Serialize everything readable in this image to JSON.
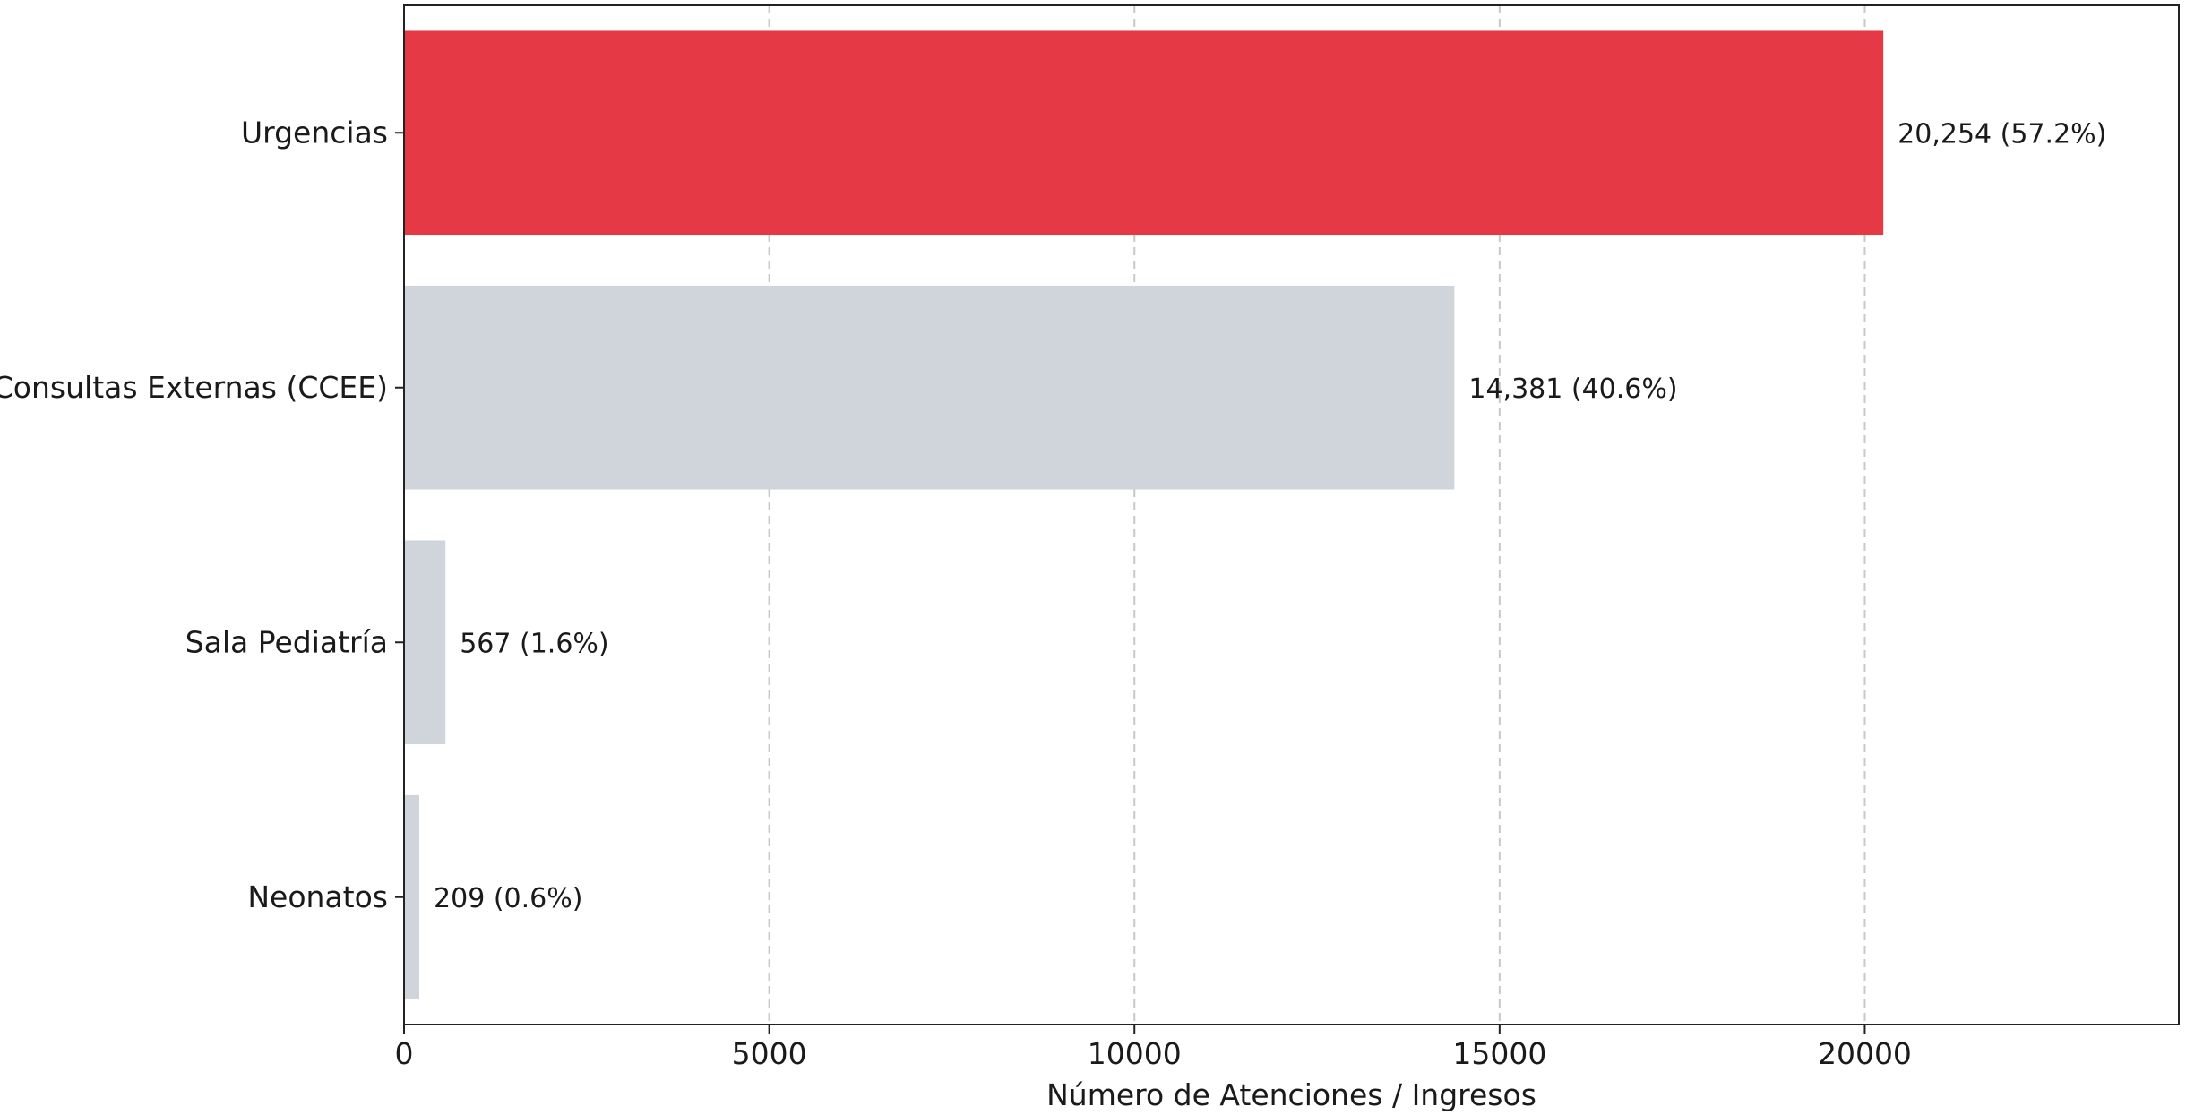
{
  "chart_data": {
    "type": "bar",
    "orientation": "horizontal",
    "title": "",
    "xlabel": "Número de Atenciones / Ingresos",
    "ylabel": "",
    "xlim": [
      0,
      24300
    ],
    "xticks": [
      0,
      5000,
      10000,
      15000,
      20000
    ],
    "xtick_labels": [
      "0",
      "5000",
      "10000",
      "15000",
      "20000"
    ],
    "grid": "vertical dashed",
    "categories": [
      "Urgencias",
      "Consultas Externas (CCEE)",
      "Sala Pediatría",
      "Neonatos"
    ],
    "values": [
      20254,
      14381,
      567,
      209
    ],
    "value_labels": [
      "20,254 (57.2%)",
      "14,381 (40.6%)",
      "567 (1.6%)",
      "209 (0.6%)"
    ],
    "colors": [
      "#e63946",
      "#d0d5db",
      "#d0d5db",
      "#d0d5db"
    ]
  }
}
